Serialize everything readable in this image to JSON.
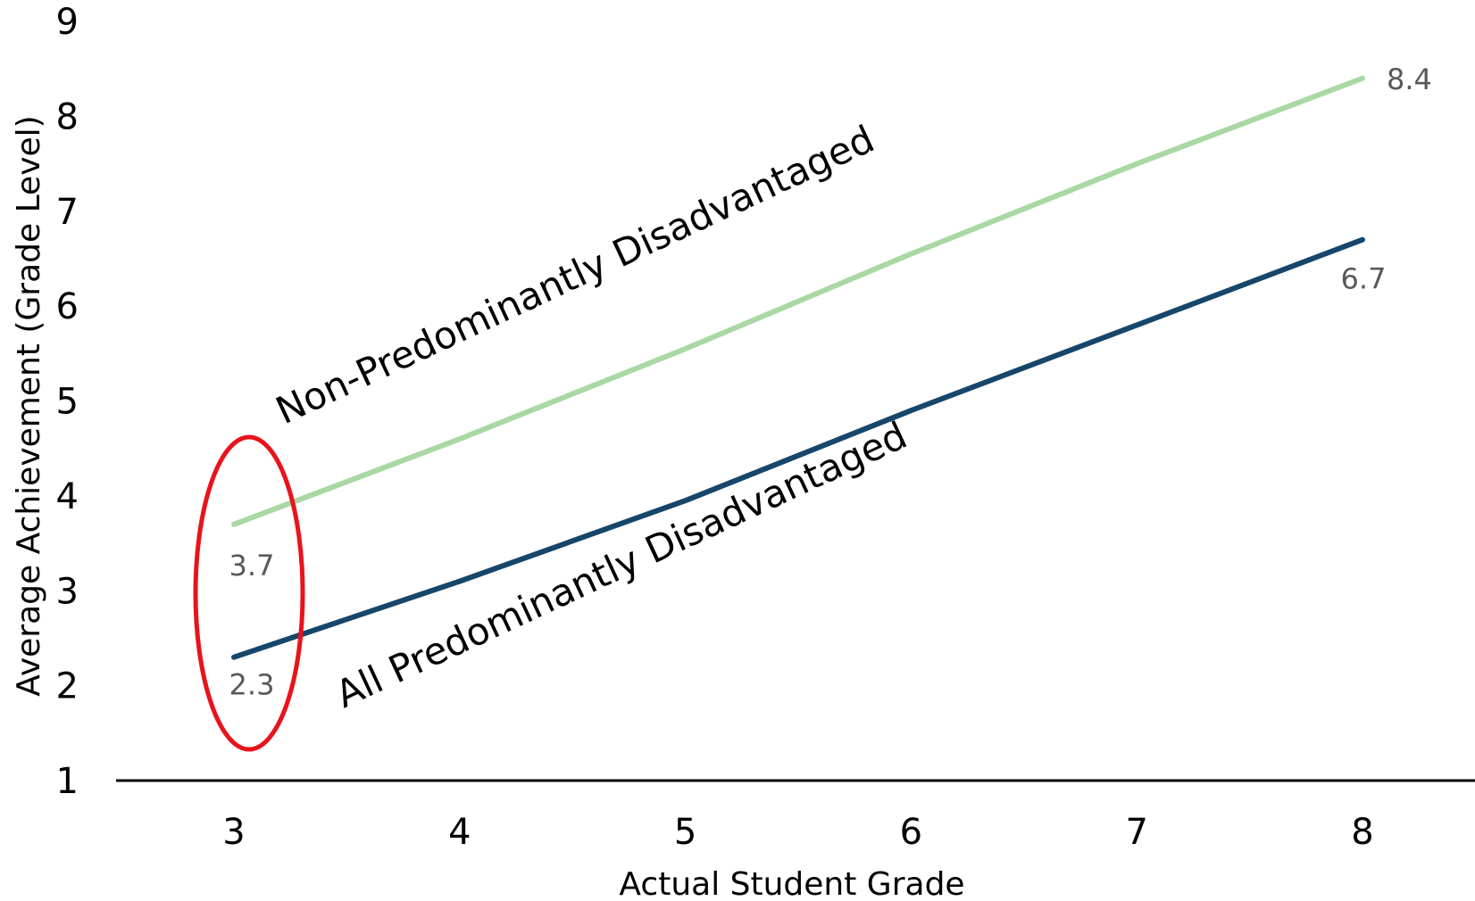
{
  "chart_data": {
    "type": "line",
    "xlabel": "Actual Student Grade",
    "ylabel": "Average Achievement (Grade Level)",
    "x": [
      3,
      4,
      5,
      6,
      7,
      8
    ],
    "xlim": [
      3,
      8
    ],
    "ylim": [
      1,
      9
    ],
    "yticks": [
      1,
      2,
      3,
      4,
      5,
      6,
      7,
      8,
      9
    ],
    "grid": false,
    "legend": "none",
    "series": [
      {
        "name": "Non-Predominantly Disadvantaged",
        "values": [
          3.7,
          4.6,
          5.55,
          6.55,
          7.5,
          8.4
        ],
        "color": "#a9d8a4",
        "first_label": "3.7",
        "last_label": "8.4"
      },
      {
        "name": "All Predominantly Disadvantaged",
        "values": [
          2.3,
          3.1,
          3.95,
          4.9,
          5.8,
          6.7
        ],
        "color": "#16466a",
        "first_label": "2.3",
        "last_label": "6.7"
      }
    ],
    "annotation": {
      "shape": "ellipse",
      "around_x": 3,
      "color": "#e8131b"
    }
  }
}
